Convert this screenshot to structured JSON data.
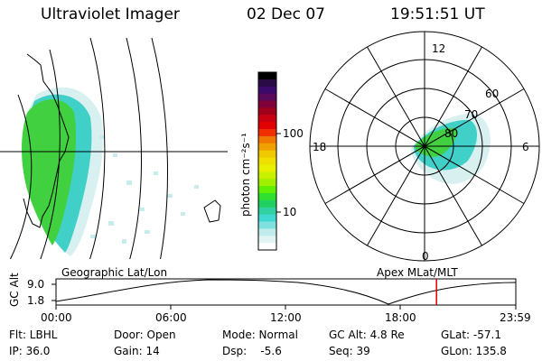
{
  "header": {
    "instrument": "Ultraviolet Imager",
    "date": "02 Dec 07",
    "time": "19:51:51 UT"
  },
  "colorbar": {
    "label": "photon cm⁻²s⁻¹",
    "ticks": [
      "100",
      "10"
    ],
    "colors": [
      "#000000",
      "#2a0a44",
      "#3c0a6a",
      "#5a0a5a",
      "#80003a",
      "#a0001a",
      "#c80010",
      "#e00000",
      "#f03000",
      "#f07800",
      "#f0a000",
      "#f0c800",
      "#f0e000",
      "#e8f000",
      "#c8f000",
      "#a0f000",
      "#60f000",
      "#30e030",
      "#20d060",
      "#30d0a0",
      "#40d8d0",
      "#80e0e0",
      "#c0ecec",
      "#e0f4f4",
      "#ffffff"
    ]
  },
  "polar": {
    "hour_labels": [
      "12",
      "18",
      "6",
      "0"
    ],
    "lat_labels": [
      "60",
      "70",
      "80"
    ]
  },
  "panels": {
    "left_label": "Geographic Lat/Lon",
    "right_label": "Apex  MLat/MLT"
  },
  "altitude_plot": {
    "axis_label": "GC Alt",
    "y_ticks": [
      "9.0",
      "1.8"
    ],
    "x_ticks": [
      "00:00",
      "06:00",
      "12:00",
      "18:00",
      "23:59"
    ],
    "marker_time_hours": 19.86
  },
  "info": {
    "flt": "Flt: LBHL",
    "ip": "IP: 36.0",
    "door": "Door: Open",
    "gain": "Gain: 14",
    "mode": "Mode: Normal",
    "dsp": "Dsp:    -5.6",
    "gcalt": "GC Alt: 4.8 Re",
    "seq": "Seq: 39",
    "glat": "GLat: -57.1",
    "glon": "GLon: 135.8"
  }
}
